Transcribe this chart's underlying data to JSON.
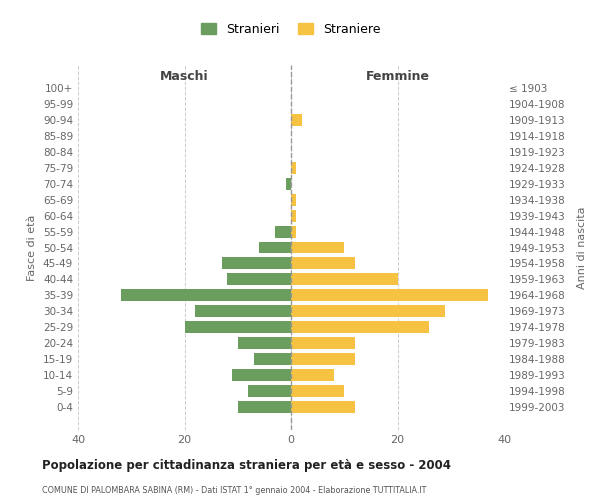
{
  "age_groups": [
    "100+",
    "95-99",
    "90-94",
    "85-89",
    "80-84",
    "75-79",
    "70-74",
    "65-69",
    "60-64",
    "55-59",
    "50-54",
    "45-49",
    "40-44",
    "35-39",
    "30-34",
    "25-29",
    "20-24",
    "15-19",
    "10-14",
    "5-9",
    "0-4"
  ],
  "birth_years": [
    "≤ 1903",
    "1904-1908",
    "1909-1913",
    "1914-1918",
    "1919-1923",
    "1924-1928",
    "1929-1933",
    "1934-1938",
    "1939-1943",
    "1944-1948",
    "1949-1953",
    "1954-1958",
    "1959-1963",
    "1964-1968",
    "1969-1973",
    "1974-1978",
    "1979-1983",
    "1984-1988",
    "1989-1993",
    "1994-1998",
    "1999-2003"
  ],
  "maschi": [
    0,
    0,
    0,
    0,
    0,
    0,
    1,
    0,
    0,
    3,
    6,
    13,
    12,
    32,
    18,
    20,
    10,
    7,
    11,
    8,
    10
  ],
  "femmine": [
    0,
    0,
    2,
    0,
    0,
    1,
    0,
    1,
    1,
    1,
    10,
    12,
    20,
    37,
    29,
    26,
    12,
    12,
    8,
    10,
    12
  ],
  "color_maschi": "#6b9e5e",
  "color_femmine": "#f5c242",
  "title": "Popolazione per cittadinanza straniera per età e sesso - 2004",
  "subtitle": "COMUNE DI PALOMBARA SABINA (RM) - Dati ISTAT 1° gennaio 2004 - Elaborazione TUTTITALIA.IT",
  "ylabel_left": "Fasce di età",
  "ylabel_right": "Anni di nascita",
  "xlim": 40,
  "legend_stranieri": "Stranieri",
  "legend_straniere": "Straniere",
  "maschi_label": "Maschi",
  "femmine_label": "Femmine",
  "bg_color": "#ffffff",
  "grid_color": "#cccccc"
}
